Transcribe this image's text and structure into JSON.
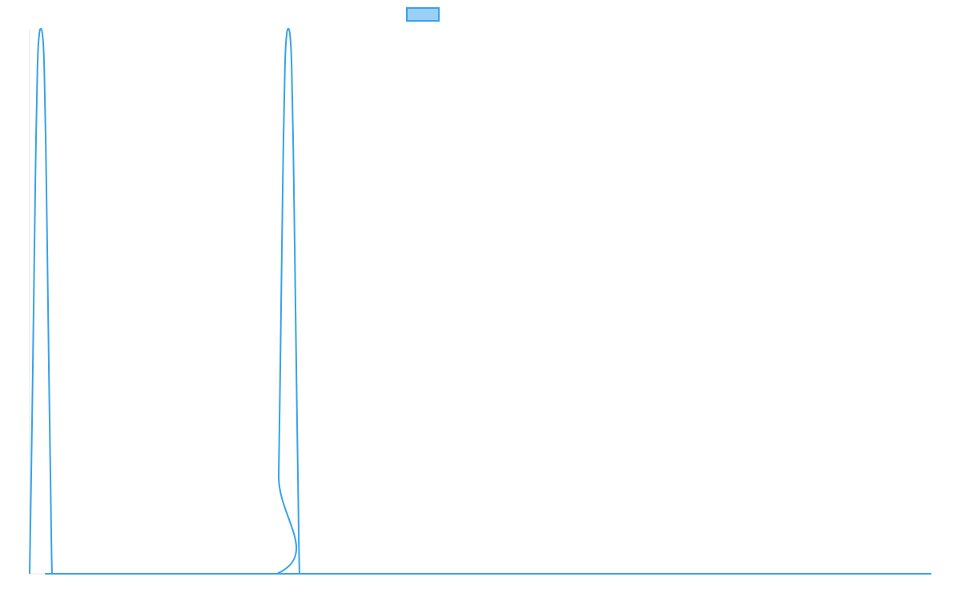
{
  "chart_data": {
    "type": "line",
    "title": "",
    "xlabel": "",
    "ylabel": "",
    "xlim": [
      0,
      1126
    ],
    "ylim": [
      0,
      1
    ],
    "grid": false,
    "legend": {
      "placement": "top-center",
      "entries": [
        {
          "label": "",
          "fill": "#9ad0f5",
          "stroke": "#36a2eb"
        }
      ]
    },
    "series": [
      {
        "color": "#36a2eb",
        "x": [
          0,
          2,
          4,
          6,
          8,
          10,
          12,
          14,
          16,
          18,
          20,
          22,
          24,
          26,
          28,
          30,
          32,
          34,
          36,
          38,
          40,
          42,
          44,
          309,
          311,
          313,
          315,
          317,
          319,
          321,
          323,
          325,
          327,
          329,
          331,
          333,
          335,
          337,
          339,
          341,
          343,
          345,
          347,
          349,
          351,
          353,
          1126
        ],
        "y": [
          0,
          0.18,
          0.38,
          0.6,
          0.8,
          0.94,
          0.99,
          1.0,
          0.99,
          0.94,
          0.8,
          0.6,
          0.38,
          0.18,
          0.0,
          0.0,
          0.0,
          0.0,
          0.0,
          0.0,
          0.0,
          0.0,
          0.0,
          0.0,
          0.18,
          0.38,
          0.6,
          0.8,
          0.94,
          0.99,
          1.0,
          0.99,
          0.94,
          0.8,
          0.6,
          0.38,
          0.18,
          0.0,
          0.0,
          0.0,
          0.0,
          0.0,
          0.0,
          0.0,
          0.0,
          0.0,
          0.0
        ]
      }
    ]
  }
}
